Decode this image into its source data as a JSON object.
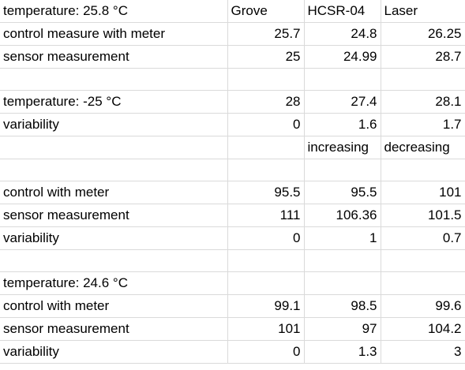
{
  "rows": [
    {
      "a": "temperature: 25.8 °C",
      "b": "Grove",
      "c": "HCSR-04",
      "d": "Laser"
    },
    {
      "a": "control measure with meter",
      "b": "25.7",
      "c": "24.8",
      "d": "26.25"
    },
    {
      "a": "sensor measurement",
      "b": "25",
      "c": "24.99",
      "d": "28.7"
    },
    {
      "a": "",
      "b": "",
      "c": "",
      "d": ""
    },
    {
      "a": "temperature: -25 °C",
      "b": "28",
      "c": "27.4",
      "d": "28.1"
    },
    {
      "a": "variability",
      "b": "0",
      "c": "1.6",
      "d": "1.7"
    },
    {
      "a": "",
      "b": "",
      "c": "increasing",
      "d": "decreasing"
    },
    {
      "a": "",
      "b": "",
      "c": "",
      "d": ""
    },
    {
      "a": "control with meter",
      "b": "95.5",
      "c": "95.5",
      "d": "101"
    },
    {
      "a": "sensor measurement",
      "b": "111",
      "c": "106.36",
      "d": "101.5"
    },
    {
      "a": "variability",
      "b": "0",
      "c": "1",
      "d": "0.7"
    },
    {
      "a": "",
      "b": "",
      "c": "",
      "d": ""
    },
    {
      "a": "temperature: 24.6 °C",
      "b": "",
      "c": "",
      "d": ""
    },
    {
      "a": "control with meter",
      "b": "99.1",
      "c": "98.5",
      "d": "99.6"
    },
    {
      "a": "sensor measurement",
      "b": "101",
      "c": "97",
      "d": "104.2"
    },
    {
      "a": "variability",
      "b": "0",
      "c": "1.3",
      "d": "3"
    }
  ]
}
